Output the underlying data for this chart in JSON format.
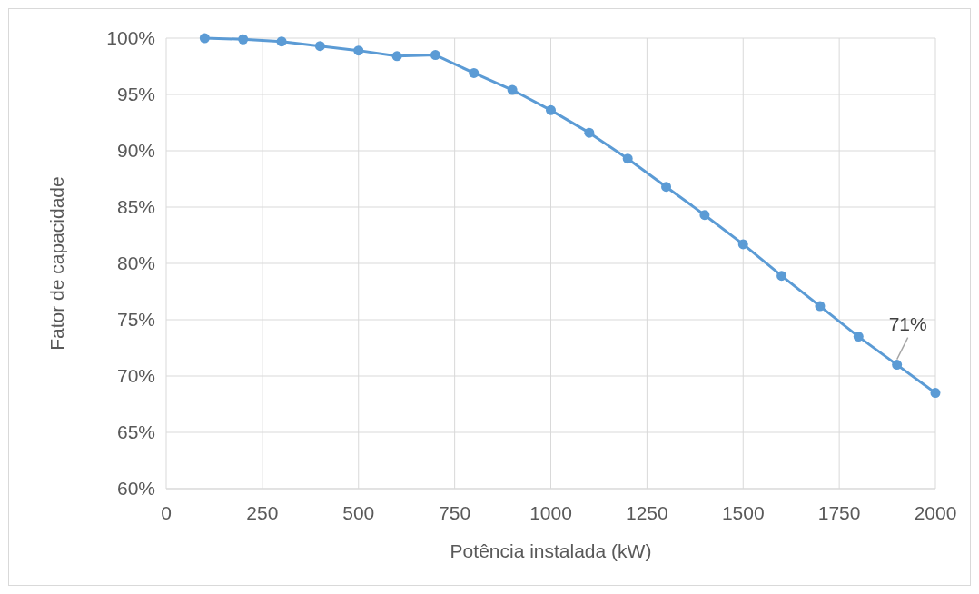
{
  "chart_data": {
    "type": "line",
    "xlabel": "Potência instalada (kW)",
    "ylabel": "Fator de capacidade",
    "x": [
      100,
      200,
      300,
      400,
      500,
      600,
      700,
      800,
      900,
      1000,
      1100,
      1200,
      1300,
      1400,
      1500,
      1600,
      1700,
      1800,
      1900,
      2000
    ],
    "series": [
      {
        "color": "#5b9bd5",
        "values": [
          100.0,
          99.9,
          99.7,
          99.3,
          98.9,
          98.4,
          98.5,
          96.9,
          95.4,
          93.6,
          91.6,
          89.3,
          86.8,
          84.3,
          81.7,
          78.9,
          76.2,
          73.5,
          71.0,
          68.5
        ]
      }
    ],
    "xlim": [
      0,
      2000
    ],
    "xticks": [
      0,
      250,
      500,
      750,
      1000,
      1250,
      1500,
      1750,
      2000
    ],
    "ylim": [
      60,
      100
    ],
    "yticks": [
      {
        "value": 60,
        "label": "60%"
      },
      {
        "value": 65,
        "label": "65%"
      },
      {
        "value": 70,
        "label": "70%"
      },
      {
        "value": 75,
        "label": "75%"
      },
      {
        "value": 80,
        "label": "80%"
      },
      {
        "value": 85,
        "label": "85%"
      },
      {
        "value": 90,
        "label": "90%"
      },
      {
        "value": 95,
        "label": "95%"
      },
      {
        "value": 100,
        "label": "100%"
      }
    ],
    "annotations": [
      {
        "text": "71%",
        "x": 1900,
        "y": 71
      }
    ],
    "grid": true,
    "marker": "circle",
    "line_style": "solid"
  }
}
